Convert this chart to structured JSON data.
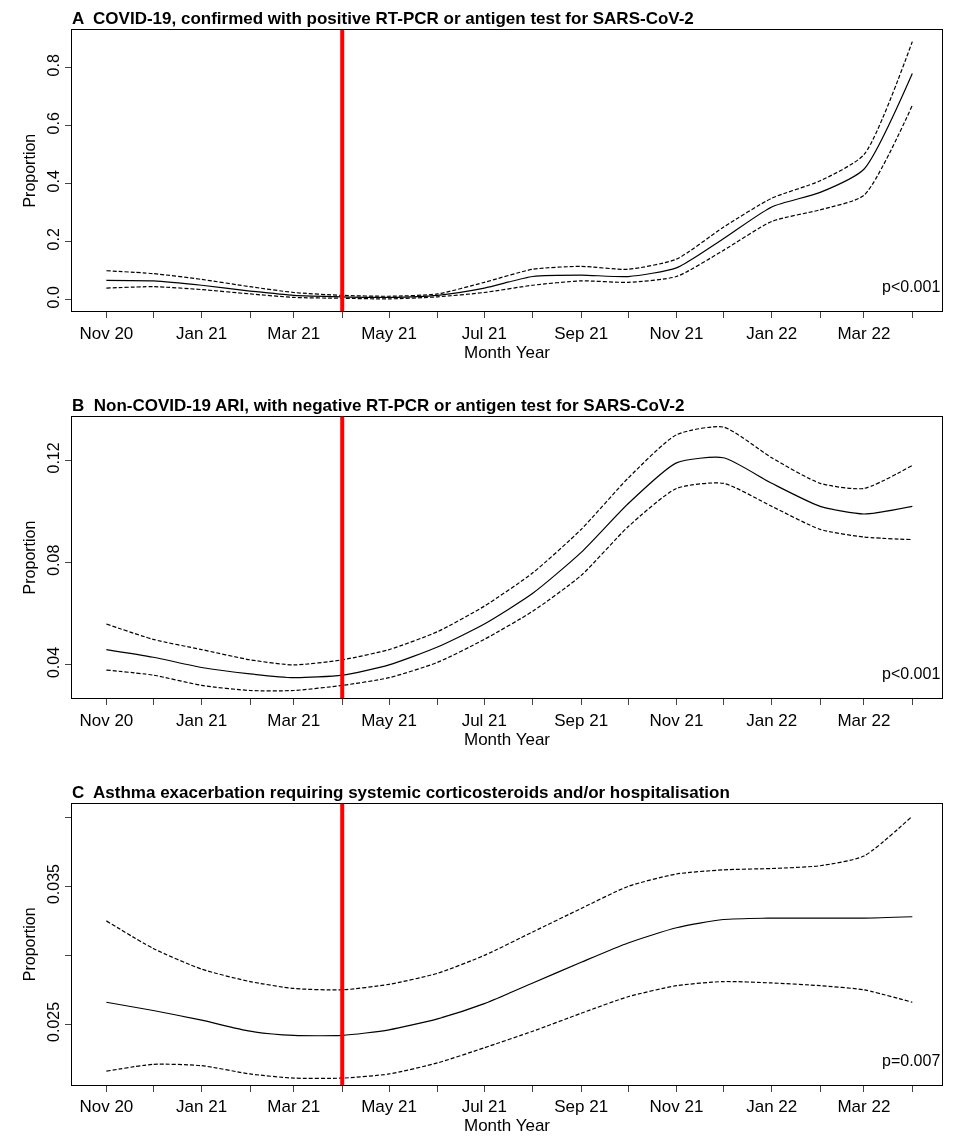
{
  "chart_data": [
    {
      "type": "line",
      "title": "A  COVID-19, confirmed with positive RT-PCR or antigen test for SARS-CoV-2",
      "xlabel": "Month Year",
      "ylabel": "Proportion",
      "x": [
        "2020-11",
        "2020-12",
        "2021-01",
        "2021-02",
        "2021-03",
        "2021-04",
        "2021-05",
        "2021-06",
        "2021-07",
        "2021-08",
        "2021-09",
        "2021-10",
        "2021-11",
        "2021-12",
        "2022-01",
        "2022-02",
        "2022-03",
        "2022-04"
      ],
      "series": [
        {
          "color": "#000000",
          "line_style": "solid",
          "values": [
            0.067,
            0.065,
            0.05,
            0.03,
            0.015,
            0.01,
            0.008,
            0.015,
            0.04,
            0.08,
            0.085,
            0.08,
            0.11,
            0.21,
            0.32,
            0.37,
            0.45,
            0.78
          ]
        },
        {
          "color": "#000000",
          "line_style": "dashed",
          "values": [
            0.1,
            0.09,
            0.07,
            0.045,
            0.025,
            0.015,
            0.012,
            0.02,
            0.06,
            0.105,
            0.115,
            0.105,
            0.14,
            0.25,
            0.35,
            0.41,
            0.5,
            0.89
          ]
        },
        {
          "color": "#000000",
          "line_style": "dashed",
          "values": [
            0.04,
            0.045,
            0.035,
            0.02,
            0.008,
            0.005,
            0.003,
            0.01,
            0.025,
            0.05,
            0.065,
            0.06,
            0.08,
            0.17,
            0.27,
            0.31,
            0.36,
            0.67
          ]
        }
      ],
      "xlim": [
        "2020-10-10",
        "2022-04-20"
      ],
      "xticks": [
        {
          "value": "2020-11",
          "label": "Nov 20"
        },
        {
          "value": "2020-12",
          "label": null
        },
        {
          "value": "2021-01",
          "label": "Jan 21"
        },
        {
          "value": "2021-02",
          "label": null
        },
        {
          "value": "2021-03",
          "label": "Mar 21"
        },
        {
          "value": "2021-04",
          "label": null
        },
        {
          "value": "2021-05",
          "label": "May 21"
        },
        {
          "value": "2021-06",
          "label": null
        },
        {
          "value": "2021-07",
          "label": "Jul 21"
        },
        {
          "value": "2021-08",
          "label": null
        },
        {
          "value": "2021-09",
          "label": "Sep 21"
        },
        {
          "value": "2021-10",
          "label": null
        },
        {
          "value": "2021-11",
          "label": "Nov 21"
        },
        {
          "value": "2021-12",
          "label": null
        },
        {
          "value": "2022-01",
          "label": "Jan 22"
        },
        {
          "value": "2022-02",
          "label": null
        },
        {
          "value": "2022-03",
          "label": "Mar 22"
        },
        {
          "value": "2022-04",
          "label": null
        }
      ],
      "ylim": [
        -0.04,
        0.93
      ],
      "yticks": [
        {
          "value": 0,
          "label": "0.0"
        },
        0.2,
        0.4,
        0.6,
        0.8
      ],
      "ref_lines": [
        {
          "axis": "x",
          "value": "2021-04",
          "color": "#ff0000"
        }
      ],
      "annotations": [
        "p<0.001"
      ]
    },
    {
      "type": "line",
      "title": "B  Non-COVID-19 ARI, with negative RT-PCR or antigen test for SARS-CoV-2",
      "xlabel": "Month Year",
      "ylabel": "Proportion",
      "x": [
        "2020-11",
        "2020-12",
        "2021-01",
        "2021-02",
        "2021-03",
        "2021-04",
        "2021-05",
        "2021-06",
        "2021-07",
        "2021-08",
        "2021-09",
        "2021-10",
        "2021-11",
        "2021-12",
        "2022-01",
        "2022-02",
        "2022-03",
        "2022-04"
      ],
      "series": [
        {
          "color": "#000000",
          "line_style": "solid",
          "values": [
            0.046,
            0.043,
            0.039,
            0.0365,
            0.035,
            0.036,
            0.04,
            0.047,
            0.056,
            0.068,
            0.084,
            0.103,
            0.119,
            0.121,
            0.111,
            0.102,
            0.099,
            0.102
          ]
        },
        {
          "color": "#000000",
          "line_style": "dashed",
          "values": [
            0.056,
            0.05,
            0.046,
            0.042,
            0.04,
            0.042,
            0.046,
            0.053,
            0.063,
            0.076,
            0.093,
            0.113,
            0.13,
            0.133,
            0.121,
            0.111,
            0.109,
            0.118
          ]
        },
        {
          "color": "#000000",
          "line_style": "dashed",
          "values": [
            0.038,
            0.036,
            0.032,
            0.03,
            0.03,
            0.032,
            0.035,
            0.041,
            0.05,
            0.061,
            0.075,
            0.094,
            0.109,
            0.111,
            0.102,
            0.093,
            0.09,
            0.089
          ]
        }
      ],
      "xlim": [
        "2020-10-10",
        "2022-04-20"
      ],
      "xticks": [
        {
          "value": "2020-11",
          "label": "Nov 20"
        },
        {
          "value": "2020-12",
          "label": null
        },
        {
          "value": "2021-01",
          "label": "Jan 21"
        },
        {
          "value": "2021-02",
          "label": null
        },
        {
          "value": "2021-03",
          "label": "Mar 21"
        },
        {
          "value": "2021-04",
          "label": null
        },
        {
          "value": "2021-05",
          "label": "May 21"
        },
        {
          "value": "2021-06",
          "label": null
        },
        {
          "value": "2021-07",
          "label": "Jul 21"
        },
        {
          "value": "2021-08",
          "label": null
        },
        {
          "value": "2021-09",
          "label": "Sep 21"
        },
        {
          "value": "2021-10",
          "label": null
        },
        {
          "value": "2021-11",
          "label": "Nov 21"
        },
        {
          "value": "2021-12",
          "label": null
        },
        {
          "value": "2022-01",
          "label": "Jan 22"
        },
        {
          "value": "2022-02",
          "label": null
        },
        {
          "value": "2022-03",
          "label": "Mar 22"
        },
        {
          "value": "2022-04",
          "label": null
        }
      ],
      "ylim": [
        0.027,
        0.137
      ],
      "yticks": [
        0.04,
        0.08,
        0.12
      ],
      "ref_lines": [
        {
          "axis": "x",
          "value": "2021-04",
          "color": "#ff0000"
        }
      ],
      "annotations": [
        "p<0.001"
      ]
    },
    {
      "type": "line",
      "title": "C  Asthma exacerbation requiring systemic corticosteroids and/or hospitalisation",
      "xlabel": "Month Year",
      "ylabel": "Proportion",
      "x": [
        "2020-11",
        "2020-12",
        "2021-01",
        "2021-02",
        "2021-03",
        "2021-04",
        "2021-05",
        "2021-06",
        "2021-07",
        "2021-08",
        "2021-09",
        "2021-10",
        "2021-11",
        "2021-12",
        "2022-01",
        "2022-02",
        "2022-03",
        "2022-04"
      ],
      "series": [
        {
          "color": "#000000",
          "line_style": "solid",
          "values": [
            0.0266,
            0.026,
            0.0253,
            0.0245,
            0.0242,
            0.0242,
            0.0246,
            0.0254,
            0.0265,
            0.028,
            0.0295,
            0.0309,
            0.032,
            0.0326,
            0.0327,
            0.0327,
            0.0327,
            0.0328
          ]
        },
        {
          "color": "#000000",
          "line_style": "dashed",
          "values": [
            0.0325,
            0.0305,
            0.029,
            0.0281,
            0.0276,
            0.0275,
            0.0279,
            0.0287,
            0.03,
            0.0317,
            0.0334,
            0.035,
            0.0359,
            0.0362,
            0.0363,
            0.0365,
            0.0372,
            0.0401
          ]
        },
        {
          "color": "#000000",
          "line_style": "dashed",
          "values": [
            0.0216,
            0.0221,
            0.022,
            0.0214,
            0.0211,
            0.0211,
            0.0214,
            0.0222,
            0.0233,
            0.0245,
            0.0258,
            0.027,
            0.0278,
            0.0281,
            0.028,
            0.0278,
            0.0275,
            0.0266
          ]
        }
      ],
      "xlim": [
        "2020-10-10",
        "2022-04-20"
      ],
      "xticks": [
        {
          "value": "2020-11",
          "label": "Nov 20"
        },
        {
          "value": "2020-12",
          "label": null
        },
        {
          "value": "2021-01",
          "label": "Jan 21"
        },
        {
          "value": "2021-02",
          "label": null
        },
        {
          "value": "2021-03",
          "label": "Mar 21"
        },
        {
          "value": "2021-04",
          "label": null
        },
        {
          "value": "2021-05",
          "label": "May 21"
        },
        {
          "value": "2021-06",
          "label": null
        },
        {
          "value": "2021-07",
          "label": "Jul 21"
        },
        {
          "value": "2021-08",
          "label": null
        },
        {
          "value": "2021-09",
          "label": "Sep 21"
        },
        {
          "value": "2021-10",
          "label": null
        },
        {
          "value": "2021-11",
          "label": "Nov 21"
        },
        {
          "value": "2021-12",
          "label": null
        },
        {
          "value": "2022-01",
          "label": "Jan 22"
        },
        {
          "value": "2022-02",
          "label": null
        },
        {
          "value": "2022-03",
          "label": "Mar 22"
        },
        {
          "value": "2022-04",
          "label": null
        }
      ],
      "ylim": [
        0.0206,
        0.041
      ],
      "yticks": [
        0.025,
        {
          "value": 0.03,
          "label": null
        },
        0.035,
        {
          "value": 0.04,
          "label": null
        }
      ],
      "ref_lines": [
        {
          "axis": "x",
          "value": "2021-04",
          "color": "#ff0000"
        }
      ],
      "annotations": [
        "p=0.007"
      ]
    }
  ]
}
